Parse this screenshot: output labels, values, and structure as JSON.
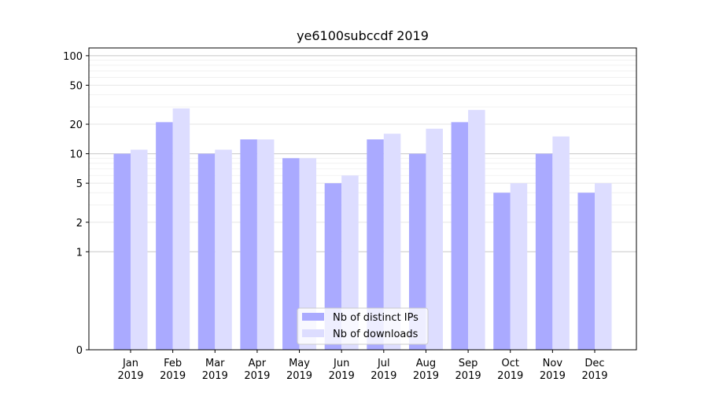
{
  "chart_data": {
    "type": "bar",
    "title": "ye6100subccdf 2019",
    "xlabel": "",
    "ylabel": "",
    "yscale": "symlog",
    "ylim": [
      0,
      120
    ],
    "yticks": [
      0,
      1,
      2,
      5,
      10,
      20,
      50,
      100
    ],
    "grid": "horizontal",
    "legend_position": "lower-center",
    "categories": [
      [
        "Jan",
        "2019"
      ],
      [
        "Feb",
        "2019"
      ],
      [
        "Mar",
        "2019"
      ],
      [
        "Apr",
        "2019"
      ],
      [
        "May",
        "2019"
      ],
      [
        "Jun",
        "2019"
      ],
      [
        "Jul",
        "2019"
      ],
      [
        "Aug",
        "2019"
      ],
      [
        "Sep",
        "2019"
      ],
      [
        "Oct",
        "2019"
      ],
      [
        "Nov",
        "2019"
      ],
      [
        "Dec",
        "2019"
      ]
    ],
    "series": [
      {
        "name": "Nb of distinct IPs",
        "color": "#aaaaff",
        "values": [
          10,
          21,
          10,
          14,
          9,
          5,
          14,
          10,
          21,
          4,
          10,
          4
        ]
      },
      {
        "name": "Nb of downloads",
        "color": "#ddddff",
        "values": [
          11,
          29,
          11,
          14,
          9,
          6,
          16,
          18,
          28,
          5,
          15,
          5
        ]
      }
    ]
  }
}
